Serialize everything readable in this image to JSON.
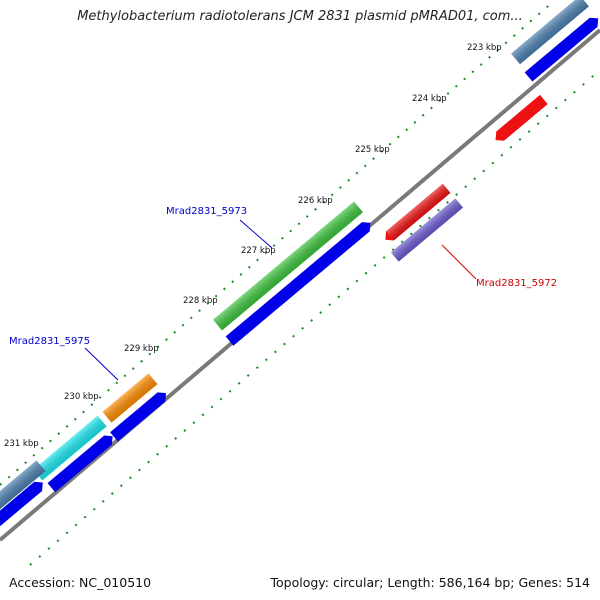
{
  "title": "Methylobacterium radiotolerans JCM 2831 plasmid pMRAD01, com...",
  "ticks": [
    "223 kbp",
    "224 kbp",
    "225 kbp",
    "226 kbp",
    "227 kbp",
    "228 kbp",
    "229 kbp",
    "230 kbp",
    "231 kbp"
  ],
  "gene_labels": {
    "mrad5973": "Mrad2831_5973",
    "mrad5975": "Mrad2831_5975",
    "mrad5972": "Mrad2831_5972"
  },
  "footer": {
    "accession": "Accession: NC_010510",
    "summary": "Topology: circular; Length: 586,164 bp; Genes: 514"
  },
  "colors": {
    "backbone": "#7a7a7a",
    "tick_green": "#1f8a1f",
    "cds_blue": "#0000e8",
    "cds_steel": "#4a7fb0",
    "cds_green": "#3cc43c",
    "cds_orange": "#ff8c00",
    "cds_cyan": "#19e8f0",
    "cds_red": "#ee1111",
    "cds_slate": "#6a5ad0",
    "label_blue": "#0000cc",
    "label_red": "#cc0000"
  }
}
